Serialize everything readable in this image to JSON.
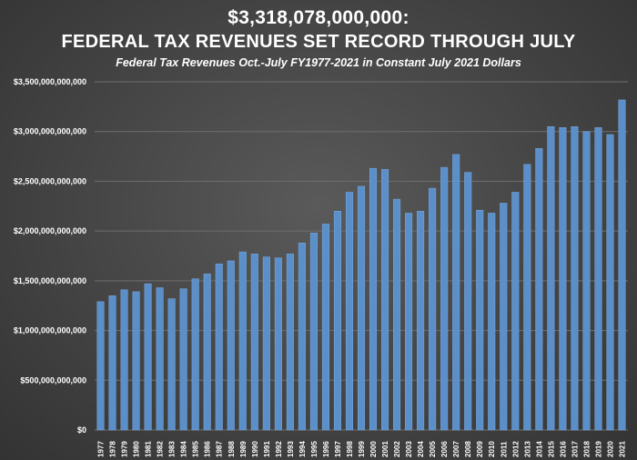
{
  "header": {
    "title_line1": "$3,318,078,000,000:",
    "title_line2": "FEDERAL TAX REVENUES SET RECORD THROUGH JULY",
    "subtitle": "Federal Tax Revenues Oct.-July FY1977-2021 in Constant July 2021 Dollars"
  },
  "colors": {
    "bar": "#5b8fc9",
    "bar_edge": "#7aa9dc",
    "gridline": "#6e6e6e"
  },
  "chart_data": {
    "type": "bar",
    "title": "$3,318,078,000,000: FEDERAL TAX REVENUES SET RECORD THROUGH JULY",
    "subtitle": "Federal Tax Revenues Oct.-July FY1977-2021 in Constant July 2021 Dollars",
    "xlabel": "",
    "ylabel": "",
    "ylim": [
      0,
      3500000000000
    ],
    "grid": true,
    "yticks": [
      {
        "value": 0,
        "label": "$0"
      },
      {
        "value": 500000000000,
        "label": "$500,000,000,000"
      },
      {
        "value": 1000000000000,
        "label": "$1,000,000,000,000"
      },
      {
        "value": 1500000000000,
        "label": "$1,500,000,000,000"
      },
      {
        "value": 2000000000000,
        "label": "$2,000,000,000,000"
      },
      {
        "value": 2500000000000,
        "label": "$2,500,000,000,000"
      },
      {
        "value": 3000000000000,
        "label": "$3,000,000,000,000"
      },
      {
        "value": 3500000000000,
        "label": "$3,500,000,000,000"
      }
    ],
    "categories": [
      "1977",
      "1978",
      "1979",
      "1980",
      "1981",
      "1982",
      "1983",
      "1984",
      "1985",
      "1986",
      "1987",
      "1988",
      "1989",
      "1990",
      "1991",
      "1992",
      "1993",
      "1994",
      "1995",
      "1996",
      "1997",
      "1998",
      "1999",
      "2000",
      "2001",
      "2002",
      "2003",
      "2004",
      "2005",
      "2006",
      "2007",
      "2008",
      "2009",
      "2010",
      "2011",
      "2012",
      "2013",
      "2014",
      "2015",
      "2016",
      "2017",
      "2018",
      "2019",
      "2020",
      "2021"
    ],
    "values": [
      1290000000000,
      1350000000000,
      1410000000000,
      1390000000000,
      1470000000000,
      1430000000000,
      1320000000000,
      1420000000000,
      1520000000000,
      1570000000000,
      1670000000000,
      1700000000000,
      1790000000000,
      1770000000000,
      1740000000000,
      1730000000000,
      1770000000000,
      1880000000000,
      1980000000000,
      2070000000000,
      2200000000000,
      2390000000000,
      2450000000000,
      2630000000000,
      2620000000000,
      2320000000000,
      2180000000000,
      2200000000000,
      2430000000000,
      2640000000000,
      2770000000000,
      2590000000000,
      2210000000000,
      2180000000000,
      2280000000000,
      2390000000000,
      2670000000000,
      2830000000000,
      3050000000000,
      3040000000000,
      3050000000000,
      3000000000000,
      3040000000000,
      2970000000000,
      3318078000000
    ]
  }
}
